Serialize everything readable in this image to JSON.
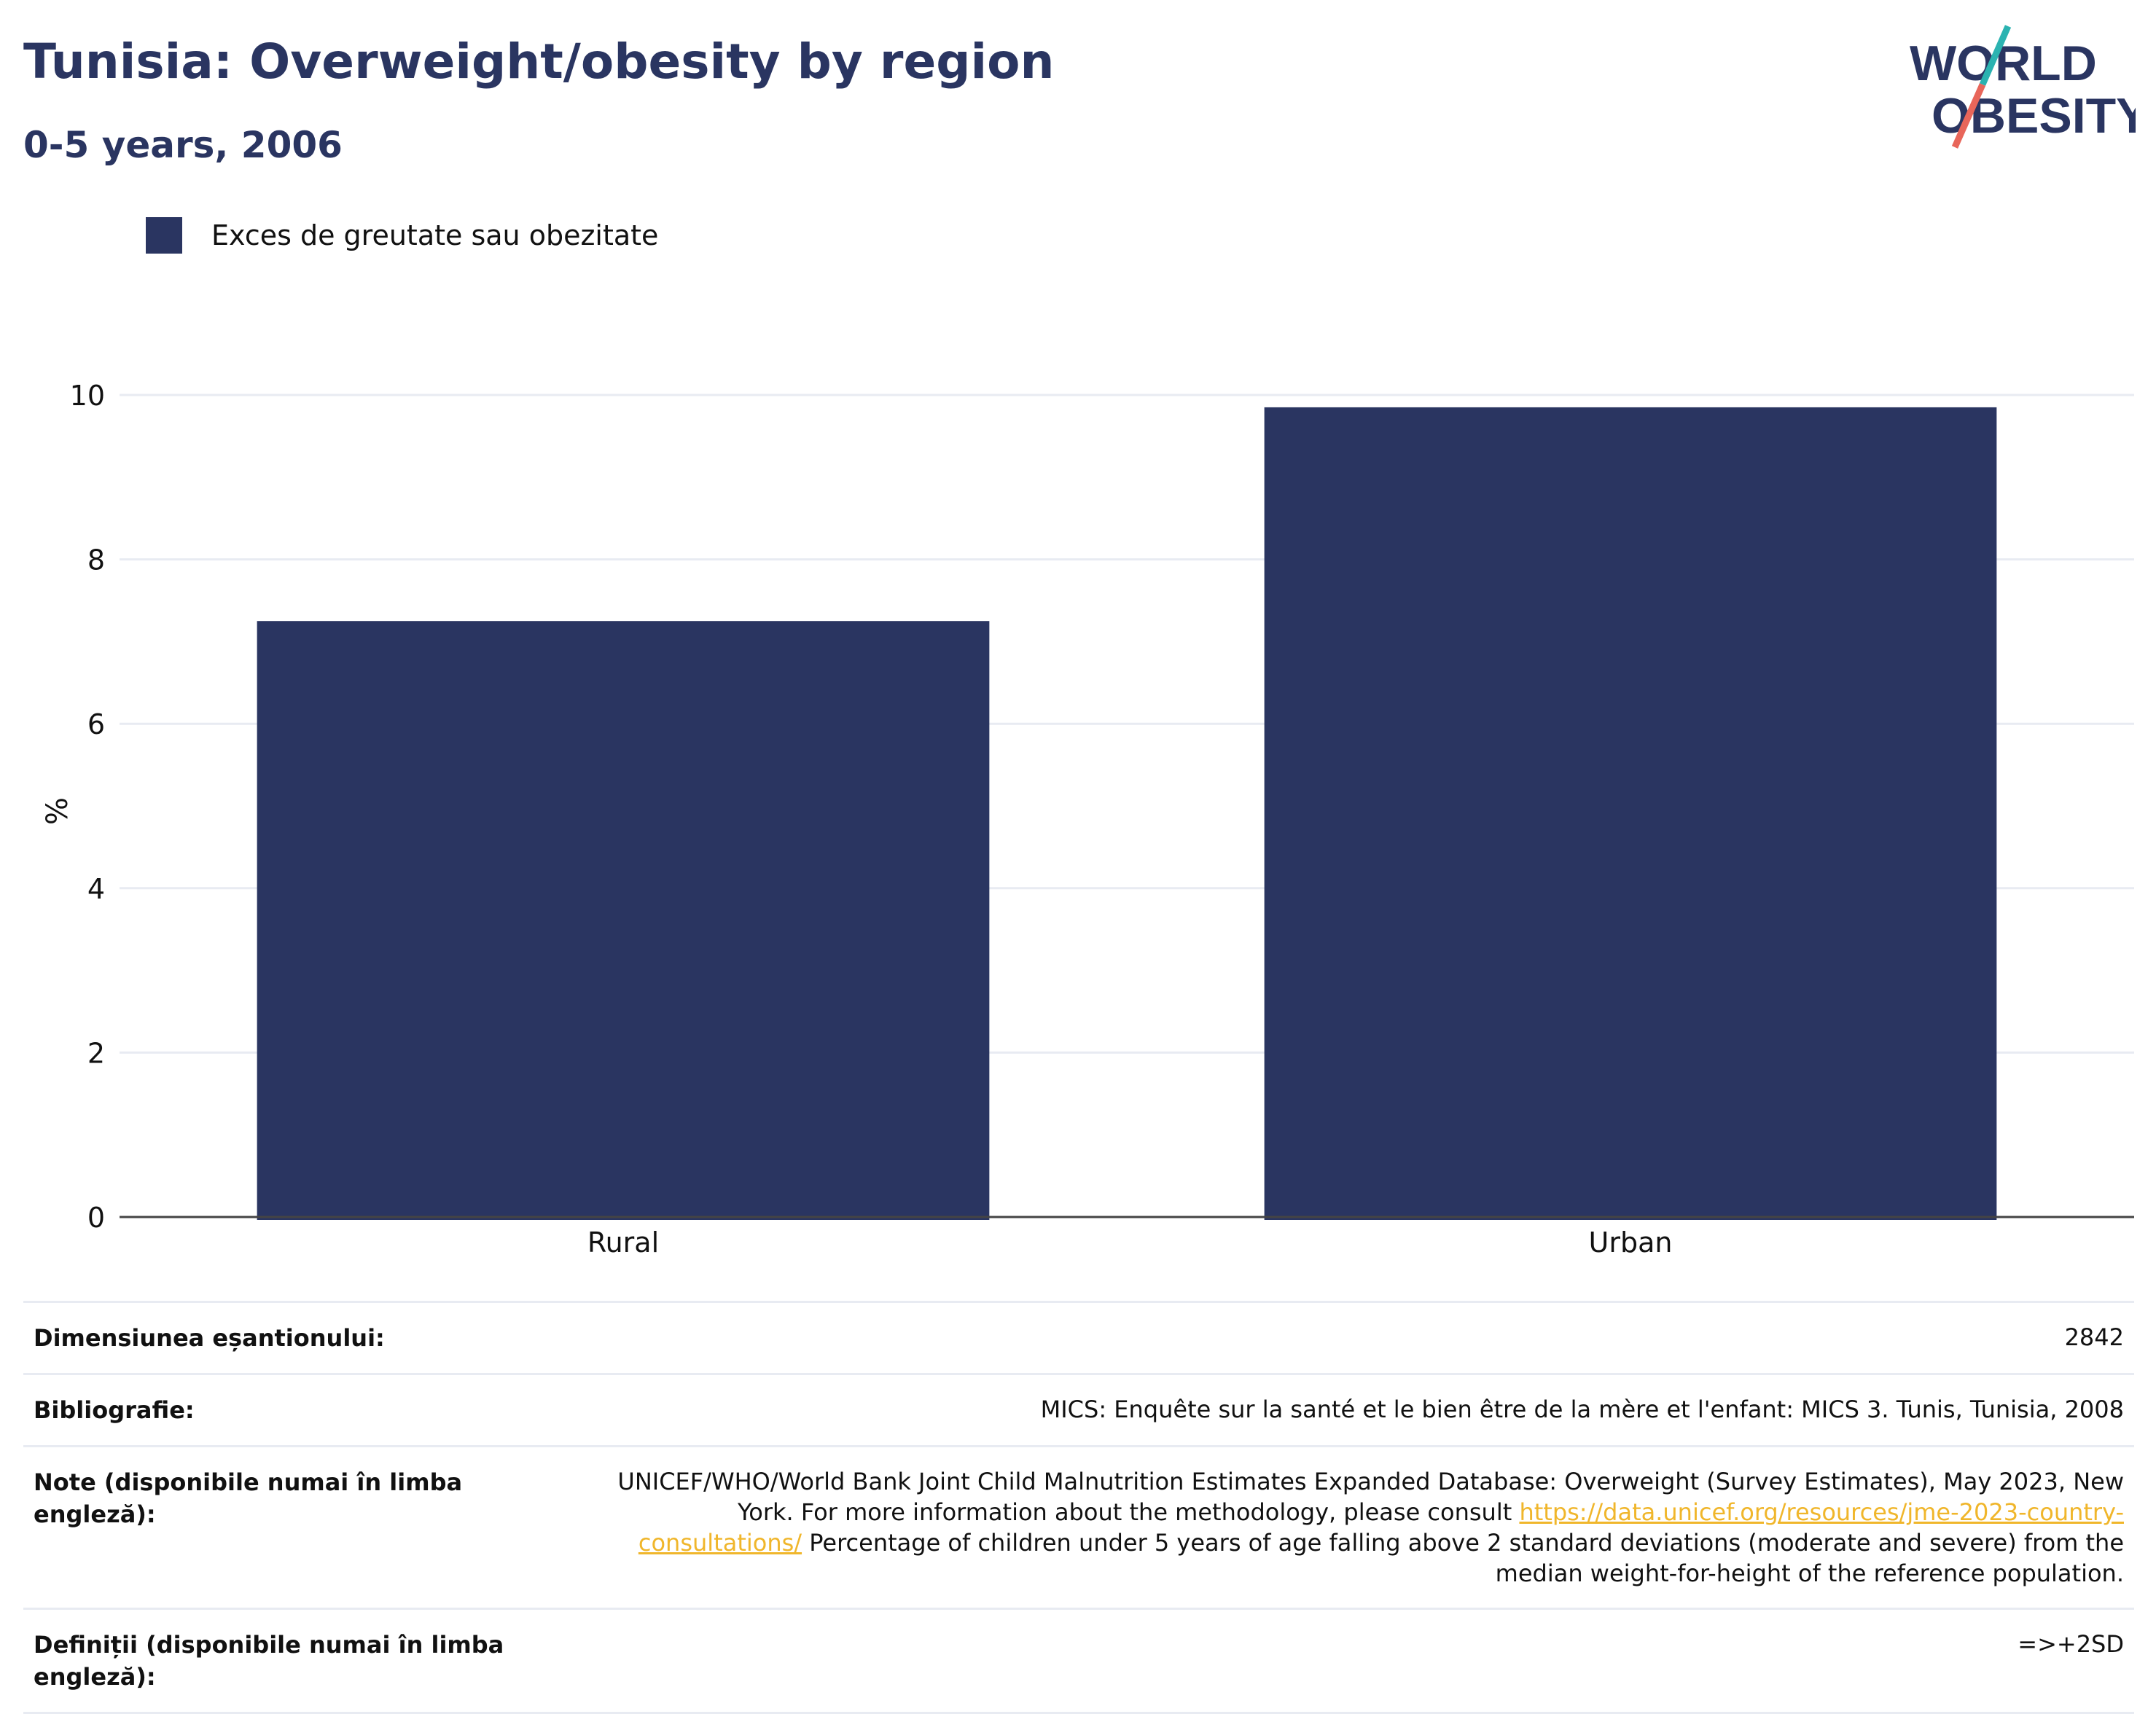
{
  "header": {
    "title": "Tunisia: Overweight/obesity by region",
    "subtitle": "0-5 years, 2006"
  },
  "logo": {
    "line1": "WORLD",
    "line2": "OBESITY"
  },
  "legend": {
    "label": "Exces de greutate sau obezitate",
    "color": "#2a3561"
  },
  "chart_data": {
    "type": "bar",
    "categories": [
      "Rural",
      "Urban"
    ],
    "series": [
      {
        "name": "Exces de greutate sau obezitate",
        "values": [
          7.25,
          9.85
        ]
      }
    ],
    "ylabel": "%",
    "ylim": [
      0,
      10
    ],
    "yticks": [
      0,
      2,
      4,
      6,
      8,
      10
    ],
    "grid": true,
    "legend": "top-left",
    "bar_color": "#2a3561"
  },
  "info": {
    "sample": {
      "key": "Dimensiunea eșantionului:",
      "value": "2842"
    },
    "biblio": {
      "key": "Bibliografie:",
      "value": "MICS: Enquête sur la santé et le bien être de la mère et l'enfant: MICS 3. Tunis, Tunisia, 2008"
    },
    "notes": {
      "key": "Note (disponibile numai în limba engleză):",
      "before": "UNICEF/WHO/World Bank Joint Child Malnutrition Estimates Expanded Database: Overweight (Survey Estimates), May 2023, New York. For more information about the methodology, please consult",
      "link": "https://data.unicef.org/resources/jme-2023-country-consultations/",
      "after": "Percentage of children under 5 years of age falling above 2 standard deviations (moderate and severe) from the median weight-for-height of the reference population."
    },
    "definitions": {
      "key": "Definiții (disponibile numai în limba engleză):",
      "value": "=>+2SD"
    }
  }
}
